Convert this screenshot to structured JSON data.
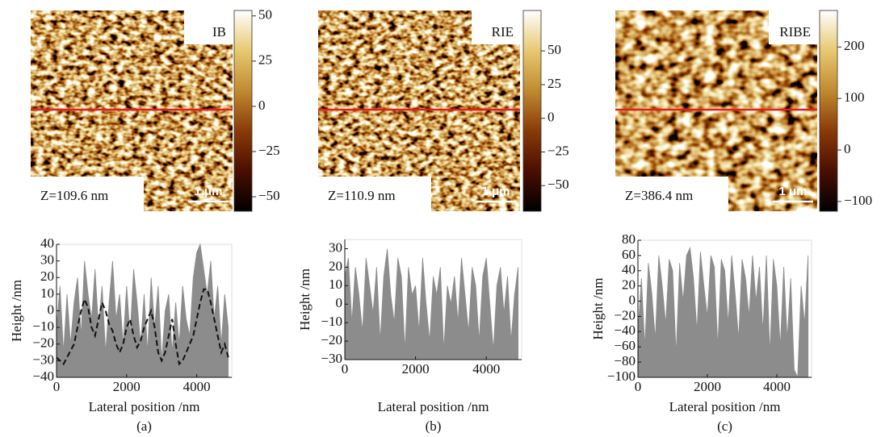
{
  "colormap": [
    "#000000",
    "#4a0e00",
    "#8a3a08",
    "#c08a30",
    "#e8c870",
    "#ffffff"
  ],
  "images": [
    {
      "label": "IB",
      "z_text": "Z=109.6 nm",
      "scale_text": "1 μm",
      "line_color": "#e02020",
      "colorbar": {
        "lim": [
          -58,
          53
        ],
        "ticks": [
          50,
          25,
          0,
          {
            "value": -25,
            "label": "−25"
          },
          {
            "value": -50,
            "label": "−50"
          }
        ]
      }
    },
    {
      "label": "RIE",
      "z_text": "Z=110.9 nm",
      "scale_text": "1 μm",
      "line_color": "#e02020",
      "colorbar": {
        "lim": [
          -69,
          80
        ],
        "ticks": [
          50,
          25,
          0,
          {
            "value": -25,
            "label": "−25"
          },
          {
            "value": -50,
            "label": "−50"
          }
        ]
      }
    },
    {
      "label": "RIBE",
      "z_text": "Z=386.4 nm",
      "scale_text": "1 μm",
      "line_color": "#e02020",
      "colorbar": {
        "lim": [
          -119,
          271
        ],
        "ticks": [
          200,
          100,
          0,
          {
            "value": -100,
            "label": "−100"
          }
        ]
      }
    }
  ],
  "chart_data": [
    {
      "type": "area",
      "caption": "(a)",
      "x_label": "Lateral position /nm",
      "y_label": "Height /nm",
      "xlim": [
        0,
        5000
      ],
      "xticks": [
        0,
        2000,
        4000
      ],
      "ylim": [
        -40,
        40
      ],
      "yticks": [
        {
          "value": -40,
          "label": "−40"
        },
        {
          "value": -30,
          "label": "−30"
        },
        {
          "value": -20,
          "label": "−20"
        },
        {
          "value": -10,
          "label": "−10"
        },
        0,
        10,
        20,
        30,
        40
      ],
      "x": [
        0,
        100,
        200,
        300,
        400,
        500,
        600,
        700,
        800,
        900,
        1000,
        1100,
        1200,
        1300,
        1400,
        1500,
        1600,
        1700,
        1800,
        1900,
        2000,
        2100,
        2200,
        2300,
        2400,
        2500,
        2600,
        2700,
        2800,
        2900,
        3000,
        3100,
        3200,
        3300,
        3400,
        3500,
        3600,
        3700,
        3800,
        3900,
        4000,
        4100,
        4200,
        4300,
        4400,
        4500,
        4600,
        4700,
        4800,
        4900
      ],
      "series": [
        {
          "style": "area",
          "color": "#8c8c8c",
          "values": [
            -10,
            15,
            -25,
            10,
            -20,
            5,
            20,
            -15,
            30,
            10,
            -5,
            25,
            -10,
            15,
            -25,
            5,
            30,
            -5,
            10,
            -20,
            15,
            -15,
            25,
            5,
            -20,
            10,
            -25,
            20,
            -10,
            15,
            -30,
            0,
            10,
            -25,
            5,
            -20,
            15,
            -5,
            -15,
            20,
            35,
            40,
            25,
            10,
            30,
            -5,
            15,
            -20,
            10,
            -10
          ]
        },
        {
          "style": "dashed",
          "color": "#111111",
          "values": [
            -28,
            -30,
            -32,
            -28,
            -24,
            -20,
            -10,
            0,
            7,
            2,
            -10,
            -15,
            -5,
            5,
            0,
            -8,
            -12,
            -20,
            -25,
            -20,
            -10,
            -5,
            -15,
            -22,
            -18,
            -10,
            -5,
            0,
            -10,
            -25,
            -30,
            -25,
            -15,
            -5,
            -20,
            -32,
            -30,
            -25,
            -20,
            -15,
            -5,
            5,
            13,
            13,
            5,
            -5,
            -15,
            -25,
            -20,
            -28
          ]
        }
      ]
    },
    {
      "type": "area",
      "caption": "(b)",
      "x_label": "Lateral position /nm",
      "y_label": "Height /nm",
      "xlim": [
        0,
        5000
      ],
      "xticks": [
        0,
        2000,
        4000
      ],
      "ylim": [
        -30,
        35
      ],
      "yticks": [
        {
          "value": -30,
          "label": "−30"
        },
        {
          "value": -20,
          "label": "−20"
        },
        {
          "value": -10,
          "label": "−10"
        },
        0,
        10,
        20,
        30
      ],
      "x": [
        0,
        100,
        200,
        300,
        400,
        500,
        600,
        700,
        800,
        900,
        1000,
        1100,
        1200,
        1300,
        1400,
        1500,
        1600,
        1700,
        1800,
        1900,
        2000,
        2100,
        2200,
        2300,
        2400,
        2500,
        2600,
        2700,
        2800,
        2900,
        3000,
        3100,
        3200,
        3300,
        3400,
        3500,
        3600,
        3700,
        3800,
        3900,
        4000,
        4100,
        4200,
        4300,
        4400,
        4500,
        4600,
        4700,
        4800,
        4900
      ],
      "series": [
        {
          "style": "area",
          "color": "#8c8c8c",
          "values": [
            15,
            25,
            -10,
            20,
            5,
            -15,
            25,
            10,
            -5,
            20,
            -20,
            15,
            30,
            5,
            -10,
            25,
            15,
            -25,
            20,
            5,
            10,
            -15,
            25,
            0,
            -20,
            15,
            5,
            20,
            -25,
            10,
            0,
            15,
            -10,
            25,
            5,
            -15,
            20,
            10,
            -20,
            15,
            25,
            0,
            -25,
            10,
            20,
            -5,
            15,
            -20,
            5,
            20
          ]
        }
      ]
    },
    {
      "type": "area",
      "caption": "(c)",
      "x_label": "Lateral position /nm",
      "y_label": "Height /nm",
      "xlim": [
        0,
        5000
      ],
      "xticks": [
        0,
        2000,
        4000
      ],
      "ylim": [
        -100,
        80
      ],
      "yticks": [
        {
          "value": -100,
          "label": "−100"
        },
        {
          "value": -80,
          "label": "−80"
        },
        {
          "value": -60,
          "label": "−60"
        },
        {
          "value": -40,
          "label": "−40"
        },
        {
          "value": -20,
          "label": "−20"
        },
        0,
        20,
        40,
        60,
        80
      ],
      "x": [
        0,
        100,
        200,
        300,
        400,
        500,
        600,
        700,
        800,
        900,
        1000,
        1100,
        1200,
        1300,
        1400,
        1500,
        1600,
        1700,
        1800,
        1900,
        2000,
        2100,
        2200,
        2300,
        2400,
        2500,
        2600,
        2700,
        2800,
        2900,
        3000,
        3100,
        3200,
        3300,
        3400,
        3500,
        3600,
        3700,
        3800,
        3900,
        4000,
        4100,
        4200,
        4300,
        4400,
        4500,
        4600,
        4700,
        4800,
        4900
      ],
      "series": [
        {
          "style": "area",
          "color": "#8c8c8c",
          "values": [
            -40,
            30,
            -60,
            50,
            10,
            -50,
            60,
            20,
            -30,
            55,
            40,
            -70,
            50,
            0,
            60,
            70,
            30,
            -40,
            65,
            20,
            -20,
            60,
            45,
            -60,
            55,
            40,
            -30,
            60,
            10,
            -50,
            55,
            30,
            -20,
            60,
            0,
            45,
            -40,
            60,
            -70,
            55,
            20,
            -60,
            45,
            -50,
            30,
            -90,
            -100,
            20,
            -30,
            60
          ]
        }
      ]
    }
  ]
}
